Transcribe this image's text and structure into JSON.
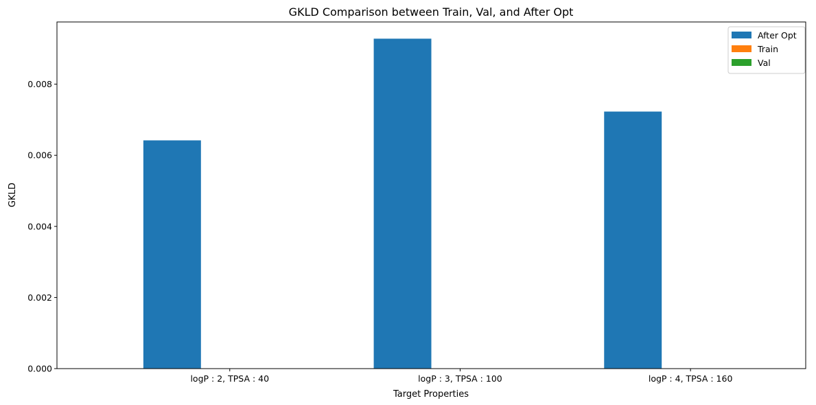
{
  "chart_data": {
    "type": "bar",
    "title": "GKLD Comparison between Train, Val, and After Opt",
    "xlabel": "Target Properties",
    "ylabel": "GKLD",
    "categories": [
      "logP : 2, TPSA : 40",
      "logP : 3, TPSA : 100",
      "logP : 4, TPSA : 160"
    ],
    "series": [
      {
        "name": "After Opt",
        "color": "#1f77b4",
        "values": [
          0.00642,
          0.00928,
          0.00723
        ]
      },
      {
        "name": "Train",
        "color": "#ff7f0e",
        "values": [
          0,
          0,
          0
        ]
      },
      {
        "name": "Val",
        "color": "#2ca02c",
        "values": [
          0,
          0,
          0
        ]
      }
    ],
    "ylim": [
      0,
      0.00975
    ],
    "yticks": [
      0.0,
      0.002,
      0.004,
      0.006,
      0.008
    ],
    "ytick_labels": [
      "0.000",
      "0.002",
      "0.004",
      "0.006",
      "0.008"
    ],
    "legend_position": "top-right",
    "grid": false
  }
}
